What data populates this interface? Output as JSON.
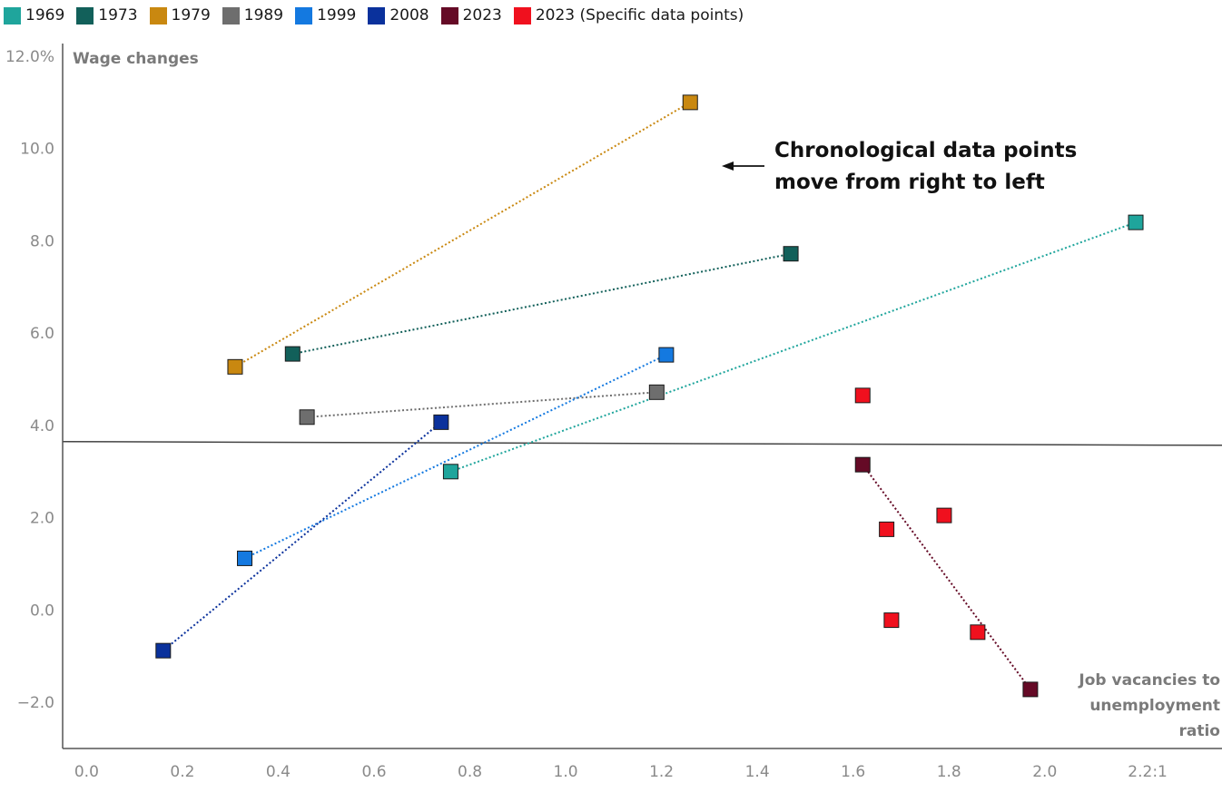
{
  "chart_data": {
    "type": "scatter",
    "xlabel_lines": [
      "Job vacancies to",
      "unemployment",
      "ratio"
    ],
    "ylabel": "Wage changes",
    "xlim": [
      -0.05,
      2.37
    ],
    "ylim": [
      -3.0,
      12.0
    ],
    "x_ticks": [
      {
        "value": 0.0,
        "label": "0.0"
      },
      {
        "value": 0.2,
        "label": "0.2"
      },
      {
        "value": 0.4,
        "label": "0.4"
      },
      {
        "value": 0.6,
        "label": "0.6"
      },
      {
        "value": 0.8,
        "label": "0.8"
      },
      {
        "value": 1.0,
        "label": "1.0"
      },
      {
        "value": 1.2,
        "label": "1.2"
      },
      {
        "value": 1.4,
        "label": "1.4"
      },
      {
        "value": 1.6,
        "label": "1.6"
      },
      {
        "value": 1.8,
        "label": "1.8"
      },
      {
        "value": 2.0,
        "label": "2.0"
      },
      {
        "value": 2.2,
        "label": "2.2:1"
      }
    ],
    "y_ticks": [
      {
        "value": 12.0,
        "label": "12.0%"
      },
      {
        "value": 10.0,
        "label": "10.0"
      },
      {
        "value": 8.0,
        "label": "8.0"
      },
      {
        "value": 6.0,
        "label": "6.0"
      },
      {
        "value": 4.0,
        "label": "4.0"
      },
      {
        "value": 2.0,
        "label": "2.0"
      },
      {
        "value": 0.0,
        "label": "0.0"
      },
      {
        "value": -2.0,
        "label": "−2.0"
      }
    ],
    "reference_line": {
      "x": [
        -0.05,
        2.37
      ],
      "y": [
        3.65,
        3.57
      ]
    },
    "annotation": {
      "lines": [
        "Chronological data points",
        "move from right to left"
      ],
      "arrow": "left"
    },
    "series": [
      {
        "name": "1969",
        "color": "#1fa59c",
        "x": [
          2.19,
          0.76
        ],
        "y": [
          8.4,
          3.0
        ],
        "connected": true
      },
      {
        "name": "1973",
        "color": "#12605a",
        "x": [
          1.47,
          0.43
        ],
        "y": [
          7.72,
          5.55
        ],
        "connected": true
      },
      {
        "name": "1979",
        "color": "#c98810",
        "x": [
          1.26,
          0.31
        ],
        "y": [
          11.0,
          5.27
        ],
        "connected": true
      },
      {
        "name": "1989",
        "color": "#6e6e6e",
        "x": [
          1.19,
          0.46
        ],
        "y": [
          4.72,
          4.18
        ],
        "connected": true
      },
      {
        "name": "1999",
        "color": "#1479e0",
        "x": [
          1.21,
          0.33
        ],
        "y": [
          5.53,
          1.12
        ],
        "connected": true
      },
      {
        "name": "2008",
        "color": "#0a319c",
        "x": [
          0.74,
          0.16
        ],
        "y": [
          4.07,
          -0.88
        ],
        "connected": true
      },
      {
        "name": "2023",
        "color": "#650a26",
        "x": [
          1.97,
          1.62
        ],
        "y": [
          -1.72,
          3.15
        ],
        "connected": true
      },
      {
        "name": "2023 (Specific data points)",
        "color": "#f0101e",
        "x": [
          1.62,
          1.67,
          1.68,
          1.79,
          1.86
        ],
        "y": [
          4.65,
          1.75,
          -0.22,
          2.05,
          -0.48
        ],
        "connected": false
      }
    ]
  }
}
